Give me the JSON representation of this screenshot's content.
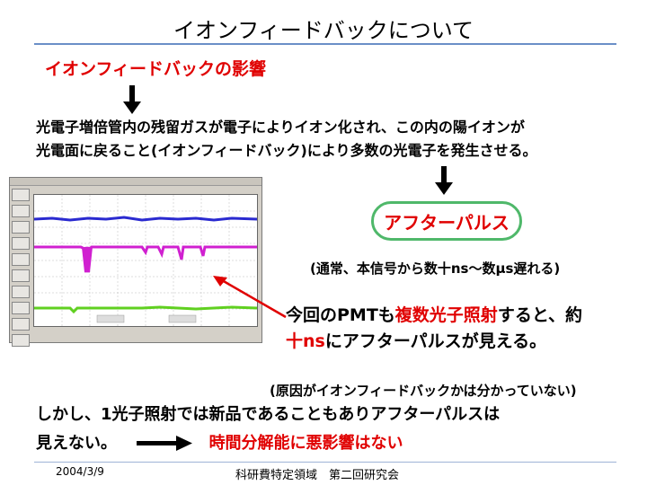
{
  "slide": {
    "title": "イオンフィードバックについて",
    "subtitle": "イオンフィードバックの影響",
    "explanation_line1": "光電子増倍管内の残留ガスが電子によりイオン化され、この内の陽イオンが",
    "explanation_line2": "光電面に戻ること(イオンフィードバック)により多数の光電子を発生させる。",
    "afterpulse_label": "アフターパルス",
    "afterpulse_note": "(通常、本信号から数十ns～数μs遅れる)",
    "pmt_line1_prefix": "今回のPMTも",
    "pmt_line1_red": "複数光子照射",
    "pmt_line1_suffix": "すると、約",
    "pmt_line2_red": "十ns",
    "pmt_line2_suffix": "にアフターパルスが見える。",
    "cause_note": "(原因がイオンフィードバックかは分かっていない)",
    "conclusion_line1": "しかし、1光子照射では新品であることもありアフターパルスは",
    "conclusion_line2": "見えない。",
    "conclusion_red": "時間分解能に悪影響はない"
  },
  "footer": {
    "date": "2004/3/9",
    "text": "科研費特定領域　第二回研究会"
  },
  "colors": {
    "accent_red": "#e00000",
    "pill_border": "#4fb86a",
    "rule_blue": "#6b8fc7",
    "trace_blue": "#2a2ad0",
    "trace_magenta": "#d020d0",
    "trace_green": "#60d020"
  }
}
